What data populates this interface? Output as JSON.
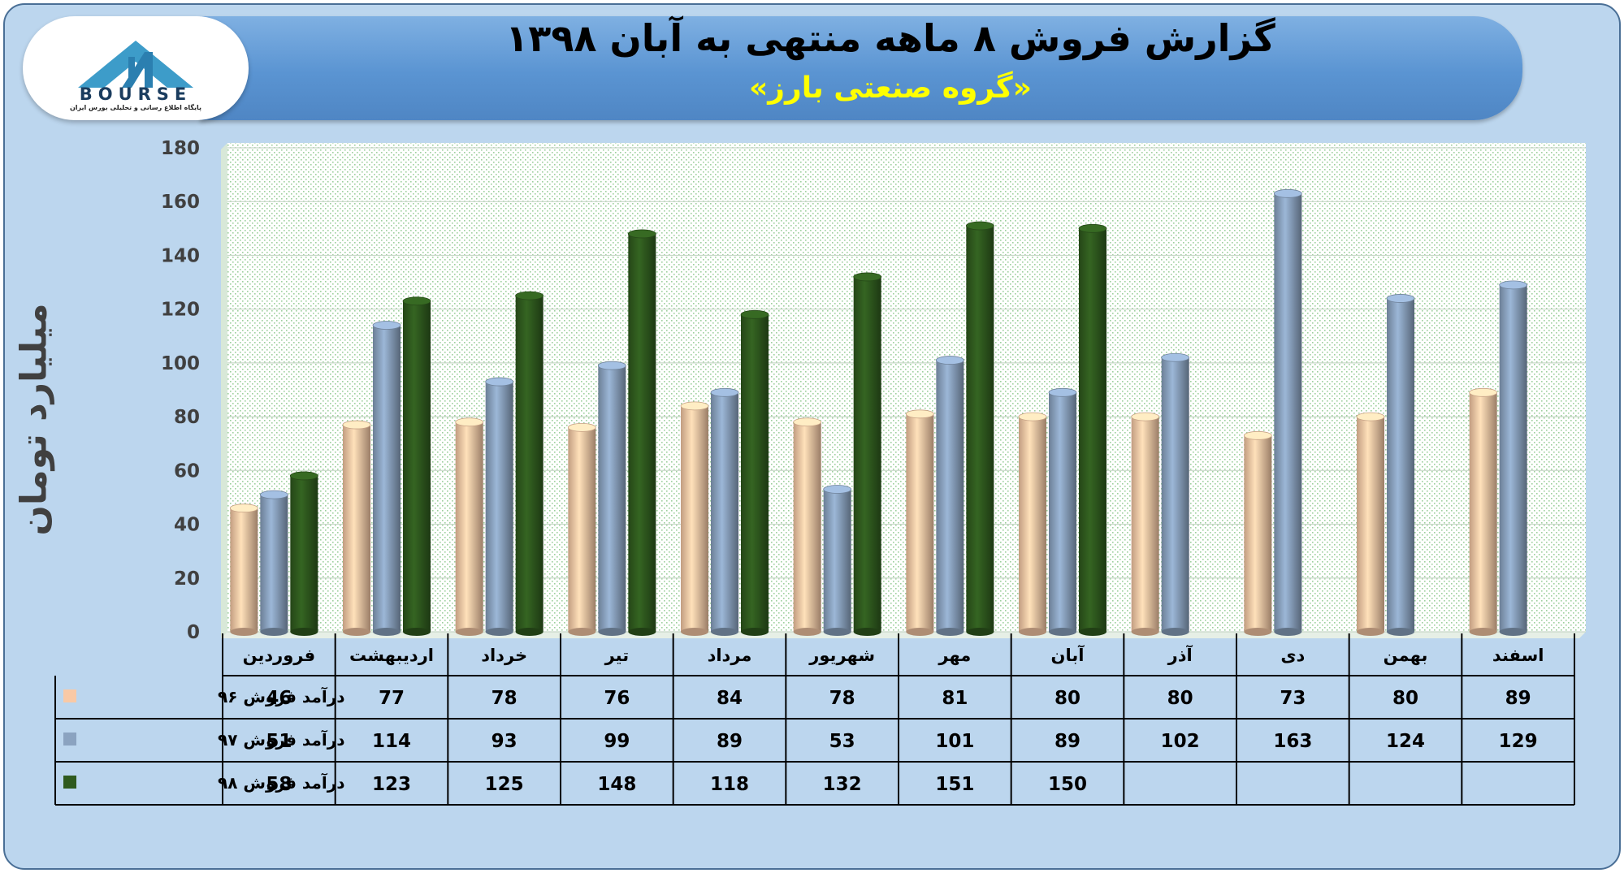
{
  "header": {
    "title": "گزارش فروش ۸ ماهه منتهی به آبان ۱۳۹۸",
    "subtitle": "«گروه صنعتی بارز»"
  },
  "logo": {
    "name": "BOURSE",
    "tagline": "پایگاه اطلاع رسانی و تحلیلی بورس ایران"
  },
  "chart_data": {
    "type": "bar",
    "ylabel": "میلیارد تومان",
    "ylim": [
      0,
      180
    ],
    "yticks": [
      0,
      20,
      40,
      60,
      80,
      100,
      120,
      140,
      160,
      180
    ],
    "grid": true,
    "categories": [
      "فروردین",
      "اردیبهشت",
      "خرداد",
      "تیر",
      "مرداد",
      "شهریور",
      "مهر",
      "آبان",
      "آذر",
      "دی",
      "بهمن",
      "اسفند"
    ],
    "series": [
      {
        "name": "درآمد فروش ۹۶",
        "color": "#f9c9a6",
        "values": [
          46,
          77,
          78,
          76,
          84,
          78,
          81,
          80,
          80,
          73,
          80,
          89
        ]
      },
      {
        "name": "درآمد فروش ۹۷",
        "color": "#8ba3c0",
        "values": [
          51,
          114,
          93,
          99,
          89,
          53,
          101,
          89,
          102,
          163,
          124,
          129
        ]
      },
      {
        "name": "درآمد فروش ۹۸",
        "color": "#2f5a1e",
        "values": [
          58,
          123,
          125,
          148,
          118,
          132,
          151,
          150,
          null,
          null,
          null,
          null
        ]
      }
    ]
  }
}
